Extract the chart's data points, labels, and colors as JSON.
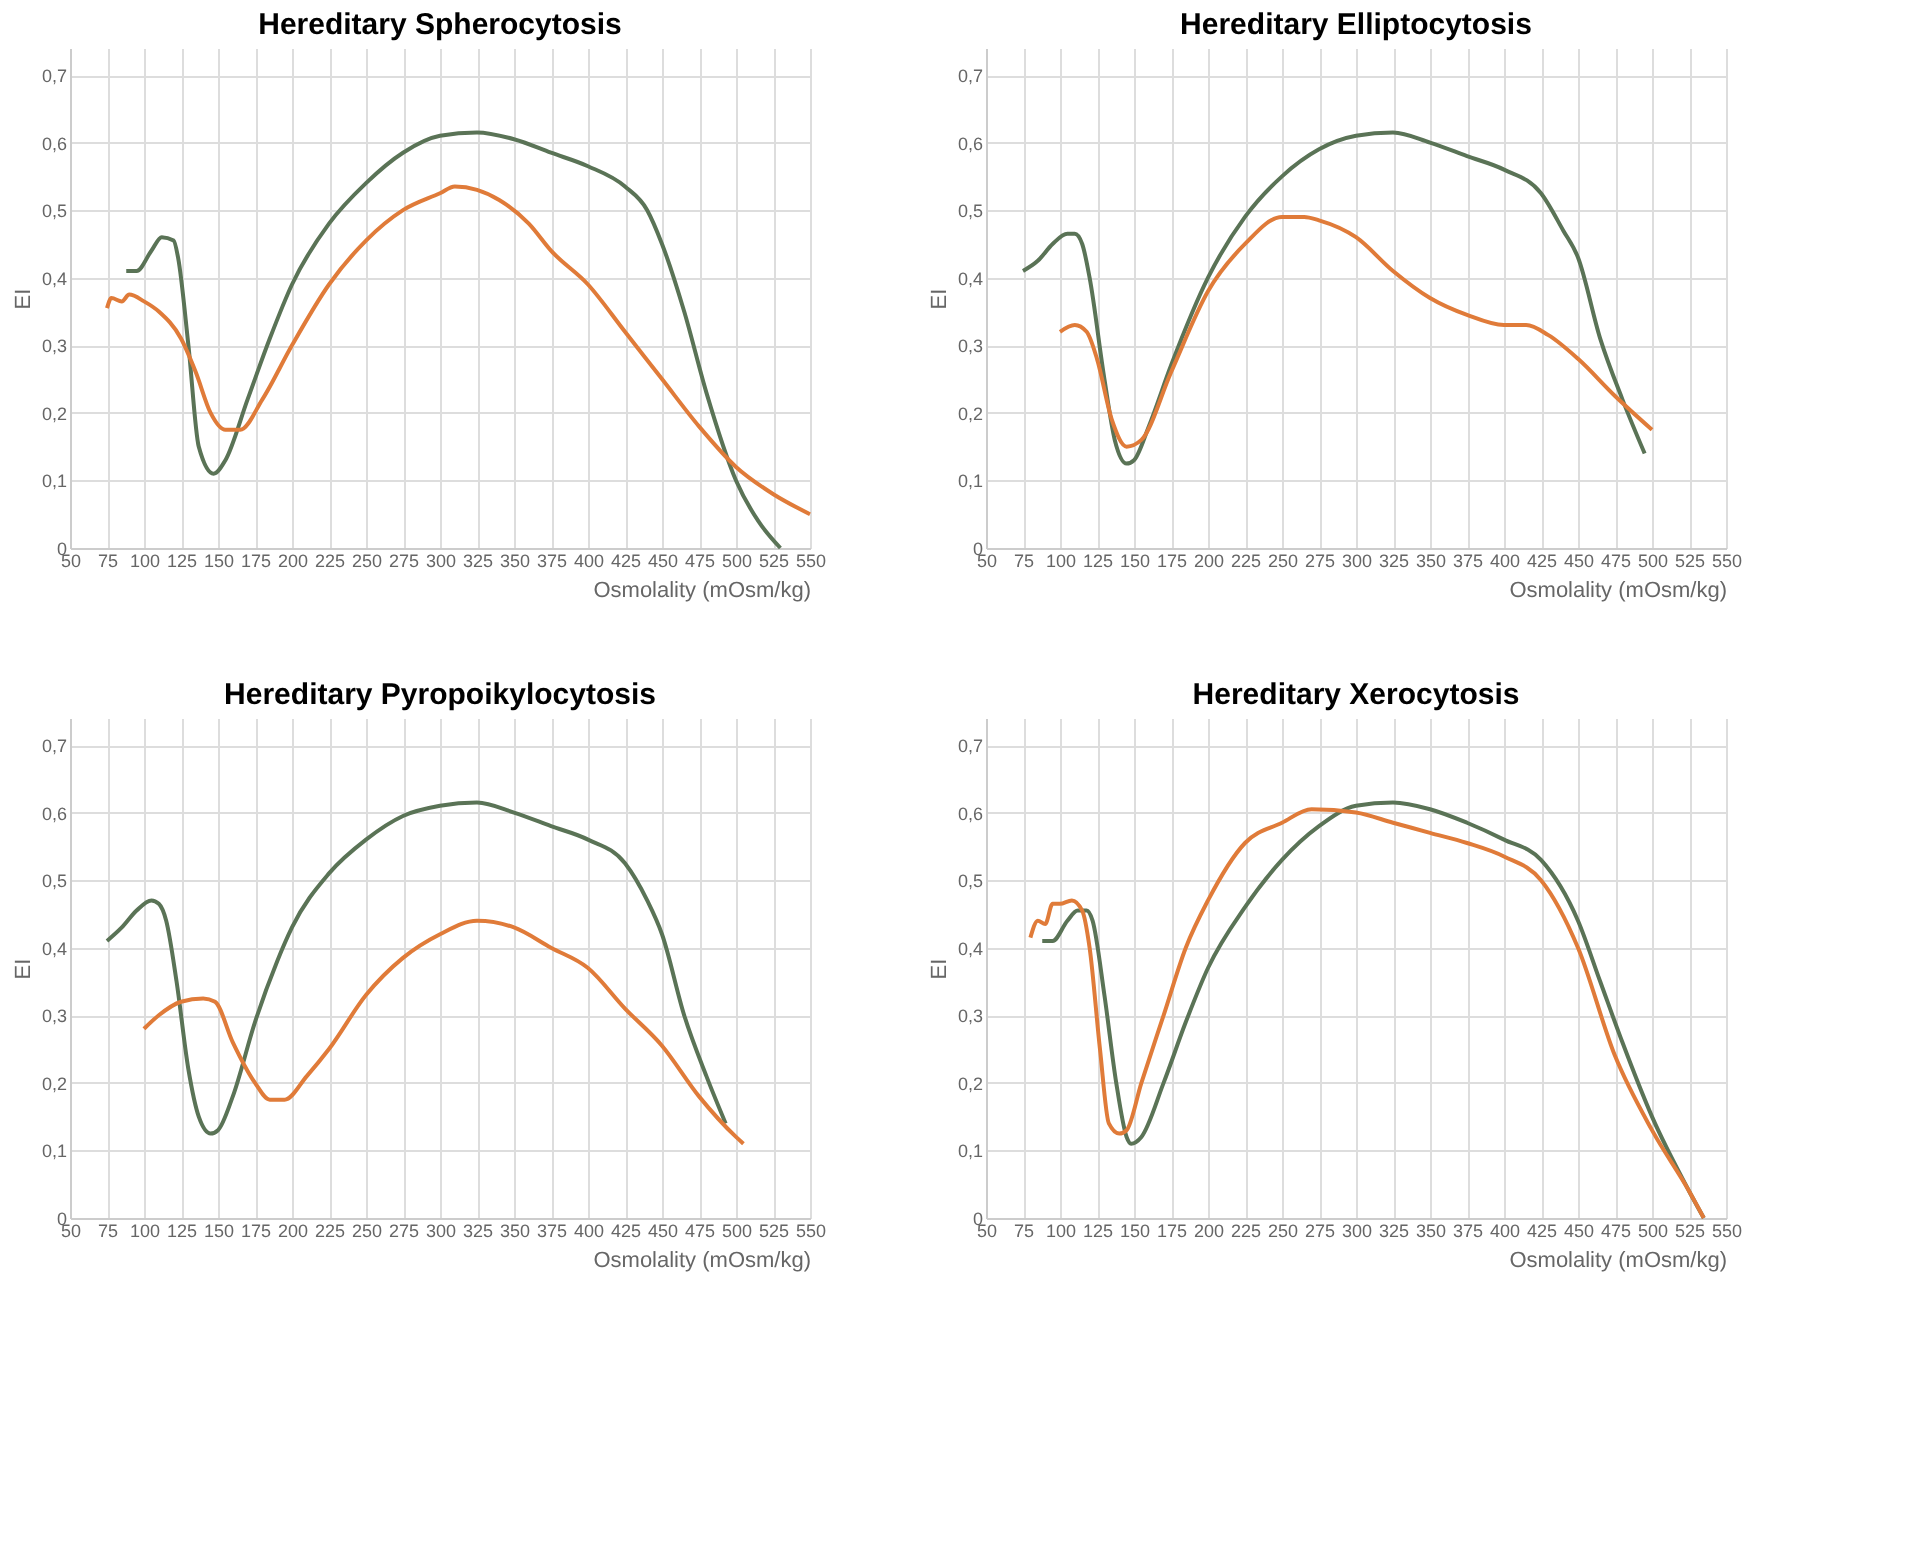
{
  "chart_data": [
    {
      "type": "line",
      "title": "Hereditary Spherocytosis",
      "xlabel": "Osmolality (mOsm/kg)",
      "ylabel": "EI",
      "xlim": [
        50,
        550
      ],
      "ylim": [
        0,
        0.74
      ],
      "xticks": [
        50,
        75,
        100,
        125,
        150,
        175,
        200,
        225,
        250,
        275,
        300,
        325,
        350,
        375,
        400,
        425,
        450,
        475,
        500,
        525,
        550
      ],
      "yticks": [
        {
          "value": 0,
          "label": "0"
        },
        {
          "value": 0.1,
          "label": "0,1"
        },
        {
          "value": 0.2,
          "label": "0,2"
        },
        {
          "value": 0.3,
          "label": "0,3"
        },
        {
          "value": 0.4,
          "label": "0,4"
        },
        {
          "value": 0.5,
          "label": "0,5"
        },
        {
          "value": 0.6,
          "label": "0,6"
        },
        {
          "value": 0.7,
          "label": "0,7"
        }
      ],
      "grid": true,
      "series": [
        {
          "color": "#5a7356",
          "x": [
            88,
            95,
            105,
            112,
            120,
            123,
            130,
            137,
            147,
            155,
            170,
            185,
            200,
            225,
            250,
            275,
            300,
            325,
            350,
            375,
            400,
            425,
            440,
            450,
            465,
            480,
            500,
            515,
            530
          ],
          "values": [
            0.41,
            0.41,
            0.44,
            0.46,
            0.455,
            0.43,
            0.3,
            0.15,
            0.11,
            0.13,
            0.22,
            0.31,
            0.39,
            0.48,
            0.54,
            0.585,
            0.61,
            0.615,
            0.605,
            0.585,
            0.565,
            0.535,
            0.5,
            0.45,
            0.35,
            0.23,
            0.1,
            0.04,
            0.0
          ]
        },
        {
          "color": "#e07b39",
          "x": [
            75,
            78,
            85,
            90,
            100,
            110,
            125,
            135,
            145,
            155,
            165,
            180,
            200,
            225,
            250,
            275,
            300,
            310,
            325,
            340,
            360,
            375,
            400,
            425,
            450,
            475,
            500,
            525,
            550
          ],
          "values": [
            0.355,
            0.37,
            0.365,
            0.375,
            0.365,
            0.35,
            0.31,
            0.26,
            0.2,
            0.175,
            0.175,
            0.22,
            0.3,
            0.39,
            0.455,
            0.5,
            0.525,
            0.535,
            0.53,
            0.515,
            0.48,
            0.44,
            0.39,
            0.32,
            0.25,
            0.18,
            0.12,
            0.08,
            0.05
          ]
        }
      ]
    },
    {
      "type": "line",
      "title": "Hereditary Elliptocytosis",
      "xlabel": "Osmolality (mOsm/kg)",
      "ylabel": "EI",
      "xlim": [
        50,
        550
      ],
      "ylim": [
        0,
        0.74
      ],
      "xticks": [
        50,
        75,
        100,
        125,
        150,
        175,
        200,
        225,
        250,
        275,
        300,
        325,
        350,
        375,
        400,
        425,
        450,
        475,
        500,
        525,
        550
      ],
      "yticks": [
        {
          "value": 0,
          "label": "0"
        },
        {
          "value": 0.1,
          "label": "0,1"
        },
        {
          "value": 0.2,
          "label": "0,2"
        },
        {
          "value": 0.3,
          "label": "0,3"
        },
        {
          "value": 0.4,
          "label": "0,4"
        },
        {
          "value": 0.5,
          "label": "0,5"
        },
        {
          "value": 0.6,
          "label": "0,6"
        },
        {
          "value": 0.7,
          "label": "0,7"
        }
      ],
      "grid": true,
      "series": [
        {
          "color": "#5a7356",
          "x": [
            75,
            85,
            95,
            105,
            110,
            115,
            120,
            130,
            137,
            145,
            150,
            160,
            175,
            200,
            225,
            250,
            275,
            300,
            325,
            350,
            375,
            400,
            425,
            440,
            450,
            465,
            480,
            495
          ],
          "values": [
            0.41,
            0.425,
            0.45,
            0.465,
            0.465,
            0.45,
            0.4,
            0.25,
            0.16,
            0.125,
            0.13,
            0.18,
            0.27,
            0.4,
            0.49,
            0.55,
            0.59,
            0.61,
            0.615,
            0.6,
            0.58,
            0.56,
            0.525,
            0.47,
            0.43,
            0.31,
            0.22,
            0.14
          ]
        },
        {
          "color": "#e07b39",
          "x": [
            100,
            110,
            118,
            125,
            135,
            145,
            155,
            175,
            200,
            225,
            250,
            265,
            275,
            300,
            325,
            350,
            375,
            400,
            415,
            430,
            450,
            475,
            500
          ],
          "values": [
            0.32,
            0.33,
            0.32,
            0.28,
            0.19,
            0.15,
            0.16,
            0.26,
            0.38,
            0.45,
            0.49,
            0.49,
            0.485,
            0.46,
            0.41,
            0.37,
            0.345,
            0.33,
            0.33,
            0.315,
            0.28,
            0.225,
            0.175
          ]
        }
      ]
    },
    {
      "type": "line",
      "title": "Hereditary Pyropoikylocytosis",
      "xlabel": "Osmolality (mOsm/kg)",
      "ylabel": "EI",
      "xlim": [
        50,
        550
      ],
      "ylim": [
        0,
        0.74
      ],
      "xticks": [
        50,
        75,
        100,
        125,
        150,
        175,
        200,
        225,
        250,
        275,
        300,
        325,
        350,
        375,
        400,
        425,
        450,
        475,
        500,
        525,
        550
      ],
      "yticks": [
        {
          "value": 0,
          "label": "0"
        },
        {
          "value": 0.1,
          "label": "0,1"
        },
        {
          "value": 0.2,
          "label": "0,2"
        },
        {
          "value": 0.3,
          "label": "0,3"
        },
        {
          "value": 0.4,
          "label": "0,4"
        },
        {
          "value": 0.5,
          "label": "0,5"
        },
        {
          "value": 0.6,
          "label": "0,6"
        },
        {
          "value": 0.7,
          "label": "0,7"
        }
      ],
      "grid": true,
      "series": [
        {
          "color": "#5a7356",
          "x": [
            75,
            85,
            95,
            105,
            110,
            115,
            122,
            130,
            137,
            145,
            150,
            160,
            175,
            190,
            200,
            225,
            250,
            275,
            300,
            325,
            350,
            375,
            400,
            425,
            440,
            450,
            465,
            480,
            493
          ],
          "values": [
            0.41,
            0.43,
            0.455,
            0.47,
            0.465,
            0.44,
            0.35,
            0.22,
            0.15,
            0.125,
            0.13,
            0.18,
            0.29,
            0.38,
            0.43,
            0.51,
            0.56,
            0.595,
            0.61,
            0.615,
            0.6,
            0.58,
            0.56,
            0.525,
            0.47,
            0.42,
            0.3,
            0.21,
            0.14
          ]
        },
        {
          "color": "#e07b39",
          "x": [
            100,
            110,
            125,
            140,
            148,
            160,
            175,
            185,
            195,
            210,
            225,
            250,
            275,
            300,
            325,
            350,
            375,
            400,
            425,
            450,
            475,
            500,
            505
          ],
          "values": [
            0.28,
            0.3,
            0.32,
            0.325,
            0.32,
            0.26,
            0.2,
            0.175,
            0.175,
            0.21,
            0.25,
            0.33,
            0.385,
            0.42,
            0.44,
            0.43,
            0.4,
            0.37,
            0.31,
            0.255,
            0.18,
            0.12,
            0.11
          ]
        }
      ]
    },
    {
      "type": "line",
      "title": "Hereditary  Xerocytosis",
      "xlabel": "Osmolality (mOsm/kg)",
      "ylabel": "EI",
      "xlim": [
        50,
        550
      ],
      "ylim": [
        0,
        0.74
      ],
      "xticks": [
        50,
        75,
        100,
        125,
        150,
        175,
        200,
        225,
        250,
        275,
        300,
        325,
        350,
        375,
        400,
        425,
        450,
        475,
        500,
        525,
        550
      ],
      "yticks": [
        {
          "value": 0,
          "label": "0"
        },
        {
          "value": 0.1,
          "label": "0,1"
        },
        {
          "value": 0.2,
          "label": "0,2"
        },
        {
          "value": 0.3,
          "label": "0,3"
        },
        {
          "value": 0.4,
          "label": "0,4"
        },
        {
          "value": 0.5,
          "label": "0,5"
        },
        {
          "value": 0.6,
          "label": "0,6"
        },
        {
          "value": 0.7,
          "label": "0,7"
        }
      ],
      "grid": true,
      "series": [
        {
          "color": "#5a7356",
          "x": [
            88,
            95,
            105,
            112,
            118,
            122,
            130,
            138,
            145,
            148,
            155,
            170,
            185,
            200,
            225,
            250,
            275,
            300,
            325,
            350,
            375,
            400,
            425,
            450,
            465,
            480,
            500,
            525,
            535
          ],
          "values": [
            0.41,
            0.41,
            0.44,
            0.455,
            0.455,
            0.44,
            0.33,
            0.2,
            0.12,
            0.11,
            0.12,
            0.2,
            0.29,
            0.37,
            0.46,
            0.53,
            0.58,
            0.61,
            0.615,
            0.605,
            0.585,
            0.56,
            0.53,
            0.44,
            0.35,
            0.26,
            0.15,
            0.04,
            0.0
          ]
        },
        {
          "color": "#e07b39",
          "x": [
            80,
            85,
            90,
            95,
            100,
            108,
            115,
            120,
            127,
            133,
            140,
            145,
            155,
            170,
            185,
            200,
            225,
            250,
            270,
            300,
            325,
            350,
            375,
            400,
            425,
            450,
            475,
            500,
            525,
            535
          ],
          "values": [
            0.415,
            0.44,
            0.435,
            0.465,
            0.465,
            0.47,
            0.455,
            0.4,
            0.25,
            0.14,
            0.125,
            0.13,
            0.2,
            0.3,
            0.4,
            0.47,
            0.555,
            0.585,
            0.605,
            0.6,
            0.585,
            0.57,
            0.555,
            0.535,
            0.5,
            0.4,
            0.24,
            0.13,
            0.04,
            0.0
          ]
        }
      ]
    }
  ]
}
